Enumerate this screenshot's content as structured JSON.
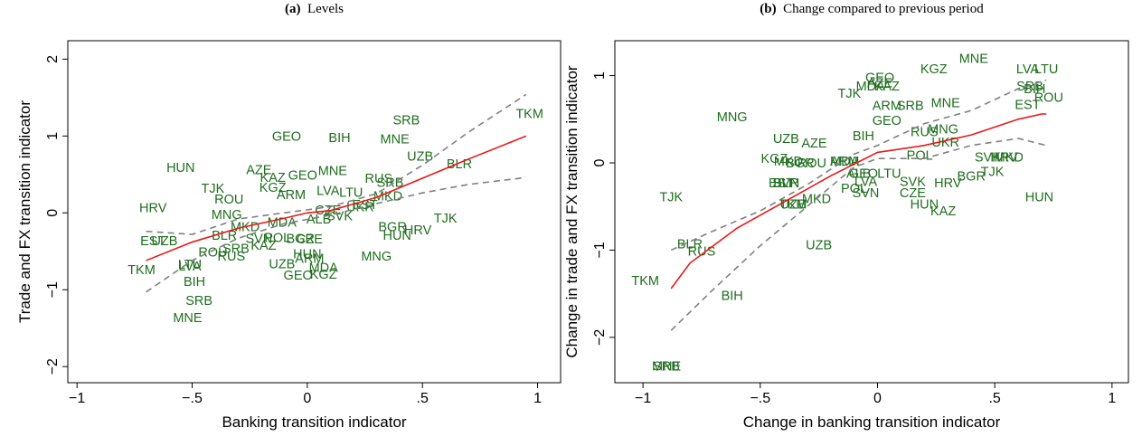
{
  "chart_data": [
    {
      "type": "scatter",
      "panel_label": "(a)",
      "title": "Levels",
      "xlabel": "Banking transition indicator",
      "ylabel": "Trade and FX transition indicator",
      "xlim": [
        -1.04,
        1.1
      ],
      "ylim": [
        -2.21,
        2.24
      ],
      "xticks": [
        {
          "value": -1,
          "label": "−1"
        },
        {
          "value": -0.5,
          "label": "−.5"
        },
        0,
        {
          "value": 0.5,
          "label": ".5"
        },
        1
      ],
      "yticks": [
        {
          "value": -2,
          "label": "−2"
        },
        {
          "value": -1,
          "label": "−1"
        },
        0,
        1,
        2
      ],
      "points": {
        "color": "#1f6d1f",
        "x": [
          0.965,
          0.43,
          0.38,
          0.49,
          0.66,
          -0.55,
          -0.21,
          -0.09,
          0.14,
          0.11,
          -0.02,
          0.31,
          -0.41,
          -0.15,
          -0.15,
          0.36,
          -0.34,
          -0.67,
          0.6,
          0.37,
          0.39,
          0.48,
          0.25,
          0.35,
          0.3,
          -0.35,
          -0.27,
          -0.36,
          -0.67,
          -0.62,
          -0.41,
          -0.33,
          -0.31,
          -0.19,
          -0.21,
          -0.13,
          -0.03,
          0.01,
          0,
          -0.11,
          0.01,
          0.07,
          -0.04,
          0.07,
          -0.72,
          -0.51,
          -0.51,
          -0.49,
          -0.47,
          -0.52,
          0.09,
          0.19,
          -0.07,
          0.23,
          0.05,
          0.14,
          -0.11,
          0.09
        ],
        "y": [
          1.29,
          1.21,
          0.96,
          0.74,
          0.64,
          0.59,
          0.56,
          1.0,
          0.98,
          0.55,
          0.49,
          0.45,
          0.32,
          0.46,
          0.33,
          0.4,
          0.18,
          0.07,
          -0.07,
          -0.18,
          -0.29,
          -0.22,
          0.11,
          0.22,
          -0.56,
          -0.02,
          -0.18,
          -0.29,
          -0.36,
          -0.36,
          -0.51,
          -0.56,
          -0.46,
          -0.42,
          -0.33,
          -0.32,
          -0.33,
          -0.34,
          -0.53,
          -0.66,
          -0.59,
          -0.71,
          -0.81,
          -0.8,
          -0.74,
          -0.67,
          -0.69,
          -0.89,
          -1.14,
          -1.36,
          0.29,
          0.27,
          0.24,
          0.08,
          -0.08,
          -0.04,
          -0.12,
          0.04
        ],
        "labels": [
          "TKM",
          "SRB",
          "MNE",
          "UZB",
          "BLR",
          "HUN",
          "AZE",
          "GEO",
          "BIH",
          "MNE",
          "GEO",
          "RUS",
          "TJK",
          "KAZ",
          "KGZ",
          "SRB",
          "ROU",
          "HRV",
          "TJK",
          "BGR",
          "HUN",
          "HRV",
          "EST",
          "MKD",
          "MNG",
          "MNG",
          "MKD",
          "BLR",
          "EST",
          "UZB",
          "ROU",
          "RUS",
          "SRB",
          "KAZ",
          "SVN",
          "POL",
          "BGR",
          "CZE",
          "HUN",
          "UZB",
          "ARM",
          "MDA",
          "GEO",
          "KGZ",
          "TKM",
          "LTU",
          "LVA",
          "BIH",
          "SRB",
          "MNE",
          "LVA",
          "LTU",
          "ARM",
          "UKR",
          "ALB",
          "SVK",
          "MDA",
          "CZE"
        ]
      },
      "fit": {
        "color": "#e8191a",
        "x": [
          -0.7,
          -0.5,
          -0.3,
          -0.1,
          0,
          0.1,
          0.3,
          0.5,
          0.7,
          0.95
        ],
        "values": [
          -0.62,
          -0.38,
          -0.2,
          -0.07,
          0,
          0.03,
          0.2,
          0.45,
          0.7,
          1.0
        ]
      },
      "ci_upper": {
        "color": "#808080",
        "x": [
          -0.7,
          -0.5,
          -0.3,
          -0.1,
          0.1,
          0.3,
          0.5,
          0.7,
          0.95
        ],
        "values": [
          -0.24,
          -0.28,
          -0.08,
          0,
          0.08,
          0.25,
          0.62,
          1.05,
          1.54
        ]
      },
      "ci_lower": {
        "color": "#808080",
        "x": [
          -0.7,
          -0.5,
          -0.3,
          -0.1,
          0.1,
          0.3,
          0.5,
          0.7,
          0.95
        ],
        "values": [
          -1.03,
          -0.62,
          -0.33,
          -0.14,
          -0.03,
          0.12,
          0.26,
          0.37,
          0.46
        ]
      }
    },
    {
      "type": "scatter",
      "panel_label": "(b)",
      "title": "Change compared to previous period",
      "xlabel": "Change in banking transition indicator",
      "ylabel": "Change in trade and FX transition indicator",
      "xlim": [
        -1.12,
        1.07
      ],
      "ylim": [
        -2.52,
        1.4
      ],
      "xticks": [
        {
          "value": -1,
          "label": "−1"
        },
        {
          "value": -0.5,
          "label": "−.5"
        },
        0,
        {
          "value": 0.5,
          "label": ".5"
        },
        1
      ],
      "yticks": [
        {
          "value": -2,
          "label": "−2"
        },
        {
          "value": -1,
          "label": "−1"
        },
        0,
        1
      ],
      "points": {
        "color": "#1f6d1f",
        "x": [
          0.41,
          0.24,
          0.64,
          0.72,
          0.01,
          0.01,
          -0.03,
          0.04,
          -0.12,
          0.65,
          0.67,
          0.73,
          0.64,
          0.14,
          0.04,
          0.29,
          -0.62,
          0.04,
          0.2,
          0.28,
          -0.39,
          -0.27,
          -0.06,
          -0.14,
          0.29,
          -0.44,
          -0.38,
          -0.33,
          -0.28,
          -0.14,
          0.18,
          0.47,
          0.54,
          0.56,
          0.4,
          0.49,
          0.3,
          0.69,
          -0.88,
          -0.39,
          -0.39,
          -0.41,
          -0.36,
          -0.36,
          -0.26,
          -0.1,
          -0.05,
          -0.05,
          0.15,
          0.2,
          0.28,
          0.15,
          -0.08,
          0.05,
          -0.06,
          -0.25,
          -0.8,
          -0.75,
          -0.99,
          -0.62,
          -0.9,
          -0.9
        ],
        "y": [
          1.2,
          1.08,
          1.08,
          1.08,
          0.98,
          0.92,
          0.88,
          0.88,
          0.8,
          0.88,
          0.85,
          0.75,
          0.67,
          0.66,
          0.66,
          0.69,
          0.53,
          0.49,
          0.36,
          0.39,
          0.28,
          0.23,
          0.31,
          0.02,
          0.24,
          0.05,
          0.02,
          0,
          0,
          0.02,
          0.09,
          0.07,
          0.07,
          0.07,
          -0.15,
          -0.1,
          -0.23,
          -0.39,
          -0.39,
          -0.23,
          -0.23,
          -0.23,
          -0.47,
          -0.47,
          -0.41,
          -0.29,
          -0.34,
          -0.21,
          -0.34,
          -0.47,
          -0.55,
          -0.21,
          -0.12,
          -0.12,
          -0.12,
          -0.94,
          -0.93,
          -1.01,
          -1.35,
          -1.52,
          -2.33,
          -2.33
        ],
        "labels": [
          "MNE",
          "KGZ",
          "LVA",
          "LTU",
          "GEO",
          "AZE",
          "MDA",
          "KAZ",
          "TJK",
          "SRB",
          "BIH",
          "ROU",
          "EST",
          "SRB",
          "ARM",
          "MNE",
          "MNG",
          "GEO",
          "RUS",
          "MNG",
          "UZB",
          "AZE",
          "BIH",
          "ARM",
          "UKR",
          "KGZ",
          "MKD",
          "BGR",
          "ROU",
          "MDA",
          "POL",
          "SVK",
          "HRV",
          "MKD",
          "BGR",
          "TJK",
          "HRV",
          "HUN",
          "TJK",
          "BLR",
          "SVN",
          "EST",
          "TKM",
          "UZB",
          "MKD",
          "POL",
          "SVN",
          "LVA",
          "CZE",
          "HUN",
          "KAZ",
          "SVK",
          "ALB",
          "LTU",
          "GEO",
          "UZB",
          "BLR",
          "RUS",
          "TKM",
          "BIH",
          "SRB",
          "MNE"
        ]
      },
      "fit": {
        "color": "#e8191a",
        "x": [
          -0.88,
          -0.8,
          -0.6,
          -0.4,
          -0.2,
          0,
          0.2,
          0.4,
          0.6,
          0.7,
          0.72
        ],
        "values": [
          -1.44,
          -1.15,
          -0.75,
          -0.45,
          -0.15,
          0.12,
          0.2,
          0.32,
          0.5,
          0.56,
          0.56
        ]
      },
      "ci_upper": {
        "color": "#808080",
        "x": [
          -0.88,
          -0.7,
          -0.5,
          -0.3,
          -0.1,
          0,
          0.2,
          0.4,
          0.6,
          0.72
        ],
        "values": [
          -1.0,
          -0.78,
          -0.55,
          -0.25,
          0.1,
          0.2,
          0.45,
          0.6,
          0.85,
          0.95
        ]
      },
      "ci_lower": {
        "color": "#808080",
        "x": [
          -0.88,
          -0.7,
          -0.5,
          -0.3,
          -0.1,
          0,
          0.2,
          0.4,
          0.6,
          0.72
        ],
        "values": [
          -1.92,
          -1.45,
          -0.95,
          -0.5,
          -0.05,
          0.05,
          0.05,
          0.2,
          0.28,
          0.2
        ]
      }
    }
  ]
}
